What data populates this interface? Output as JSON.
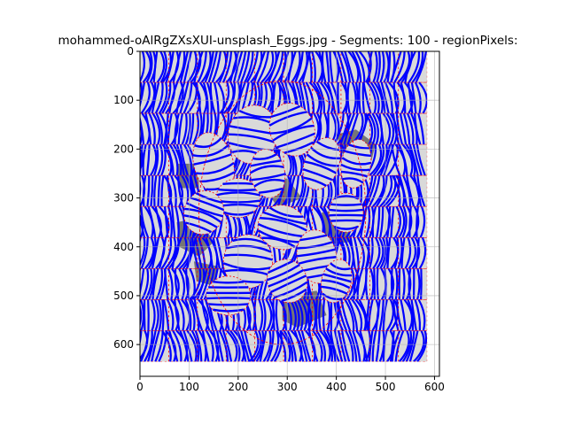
{
  "chart_data": {
    "type": "heatmap",
    "title": "mohammed-oAlRgZXsXUI-unsplash_Eggs.jpg - Segments: 100 - regionPixels:",
    "xlabel": "",
    "ylabel": "",
    "xlim": [
      0,
      610
    ],
    "ylim": [
      665,
      0
    ],
    "xticks": [
      0,
      100,
      200,
      300,
      400,
      500,
      600
    ],
    "yticks": [
      0,
      100,
      200,
      300,
      400,
      500,
      600
    ],
    "grid": true,
    "image_extent": [
      0,
      585,
      635,
      0
    ],
    "segments": 100,
    "colors": {
      "background": "#d9d9d9",
      "shadow": "#767676",
      "segment_boundary": "#ff0000",
      "flow_lines": "#0000ff",
      "grid": "#b0b0b0"
    }
  }
}
